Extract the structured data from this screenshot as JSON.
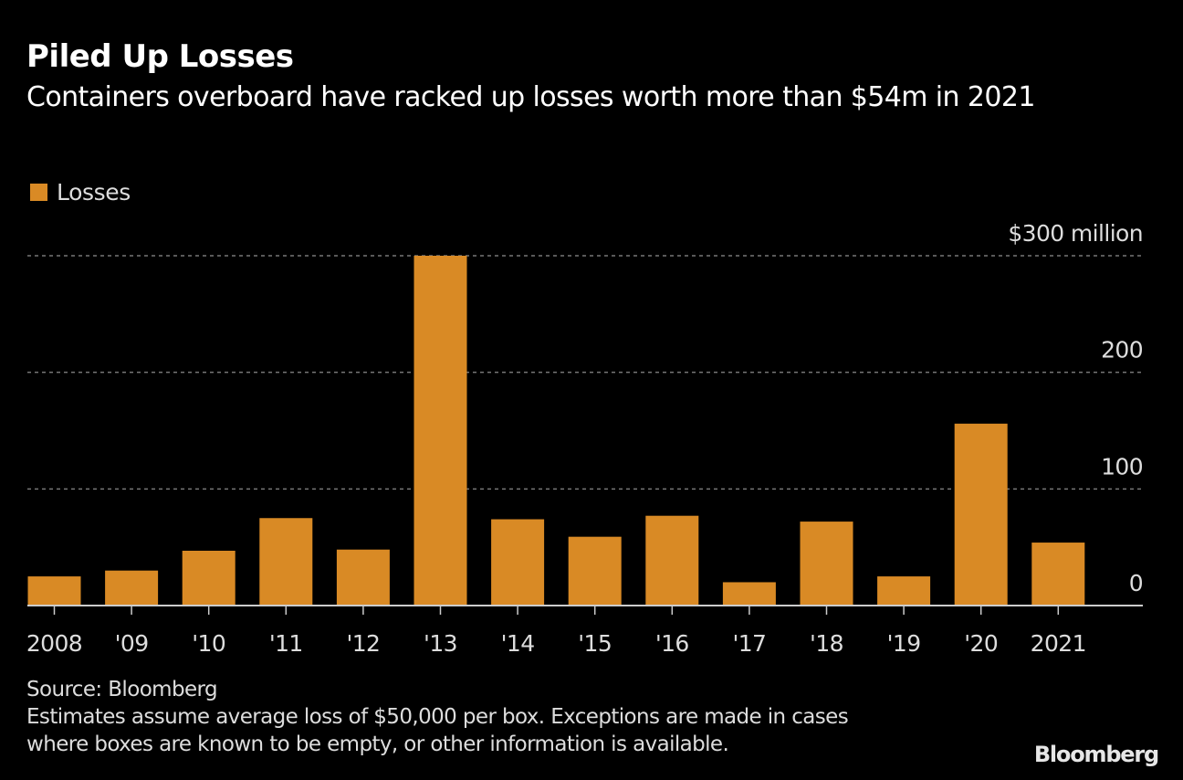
{
  "header": {
    "title": "Piled Up Losses",
    "subtitle": "Containers overboard have racked up losses worth more than $54m in 2021"
  },
  "legend": {
    "label": "Losses",
    "color": "#d98a25"
  },
  "chart_data": {
    "type": "bar",
    "title": "Piled Up Losses",
    "subtitle": "Containers overboard have racked up losses worth more than $54m in 2021",
    "categories": [
      "2008",
      "'09",
      "'10",
      "'11",
      "'12",
      "'13",
      "'14",
      "'15",
      "'16",
      "'17",
      "'18",
      "'19",
      "'20",
      "2021"
    ],
    "series": [
      {
        "name": "Losses",
        "color": "#d98a25",
        "values": [
          25,
          30,
          47,
          75,
          48,
          300,
          74,
          59,
          77,
          20,
          72,
          25,
          156,
          54
        ]
      }
    ],
    "xlabel": "",
    "ylabel": "$ million",
    "ylim": [
      0,
      300
    ],
    "yticks": [
      0,
      100,
      200,
      300
    ],
    "ytick_labels": [
      "0",
      "100",
      "200",
      "$300 million"
    ],
    "grid": true,
    "legend_position": "top-left",
    "y_axis_position": "right"
  },
  "footer": {
    "source": "Source: Bloomberg",
    "note_line1": "Estimates assume average loss of $50,000 per box. Exceptions are made in cases",
    "note_line2": "where boxes are known to be empty, or other information is available."
  },
  "brand": "Bloomberg"
}
